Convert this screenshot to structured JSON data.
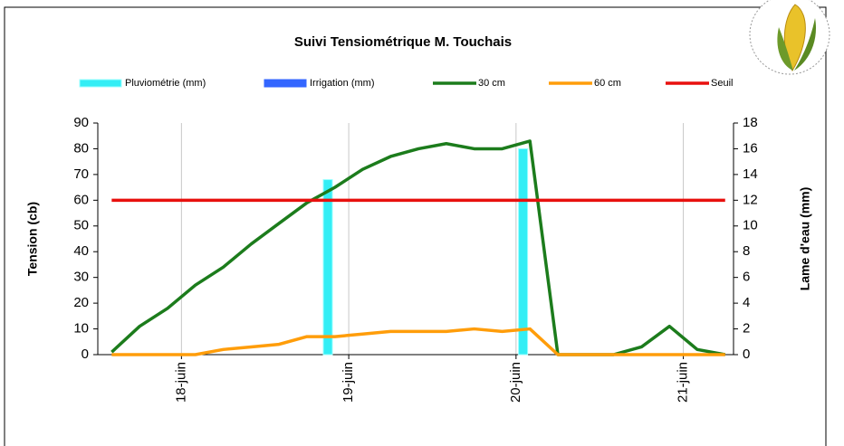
{
  "chart_data": {
    "type": "combo",
    "title": "Suivi Tensiométrique M. Touchais",
    "y_label": "Tension (cb)",
    "y2_label": "Lame d'eau (mm)",
    "x": [
      17.583,
      17.75,
      17.917,
      18.083,
      18.25,
      18.417,
      18.583,
      18.75,
      18.917,
      19.083,
      19.25,
      19.417,
      19.583,
      19.75,
      19.917,
      20.083,
      20.25,
      20.417,
      20.583,
      20.75,
      20.917,
      21.083,
      21.25
    ],
    "xlim": [
      17.5,
      21.3
    ],
    "xticks": [
      {
        "value": 18,
        "label": "18-juin"
      },
      {
        "value": 19,
        "label": "19-juin"
      },
      {
        "value": 20,
        "label": "20-juin"
      },
      {
        "value": 21,
        "label": "21-juin"
      }
    ],
    "ylim": [
      0,
      90
    ],
    "yticks": [
      0,
      10,
      20,
      30,
      40,
      50,
      60,
      70,
      80,
      90
    ],
    "y2lim": [
      0,
      18
    ],
    "y2ticks": [
      0,
      2,
      4,
      6,
      8,
      10,
      12,
      14,
      16,
      18
    ],
    "x_grid": true,
    "series": [
      {
        "name": "Pluviométrie (mm)",
        "type": "bar",
        "axis": "y2",
        "color": "#33eef5",
        "x": [
          18.875,
          20.042
        ],
        "values": [
          13.6,
          16
        ]
      },
      {
        "name": "Irrigation (mm)",
        "type": "bar",
        "axis": "y2",
        "color": "#3366ff",
        "x": [],
        "values": []
      },
      {
        "name": "30 cm",
        "type": "line",
        "color": "#1c7c1c",
        "values": [
          1,
          11,
          18,
          27,
          34,
          43,
          51,
          59,
          65,
          72,
          77,
          80,
          82,
          80,
          80,
          83,
          0,
          0,
          0,
          3,
          11,
          2,
          0
        ]
      },
      {
        "name": "60 cm",
        "type": "line",
        "color": "#ff9d0a",
        "values": [
          0,
          0,
          0,
          0,
          2,
          3,
          4,
          7,
          7,
          8,
          9,
          9,
          9,
          10,
          9,
          10,
          0,
          0,
          0,
          0,
          0,
          0,
          0
        ]
      },
      {
        "name": "Seuil",
        "type": "line",
        "color": "#e8100e",
        "values": [
          60,
          60,
          60,
          60,
          60,
          60,
          60,
          60,
          60,
          60,
          60,
          60,
          60,
          60,
          60,
          60,
          60,
          60,
          60,
          60,
          60,
          60,
          60
        ]
      }
    ]
  }
}
